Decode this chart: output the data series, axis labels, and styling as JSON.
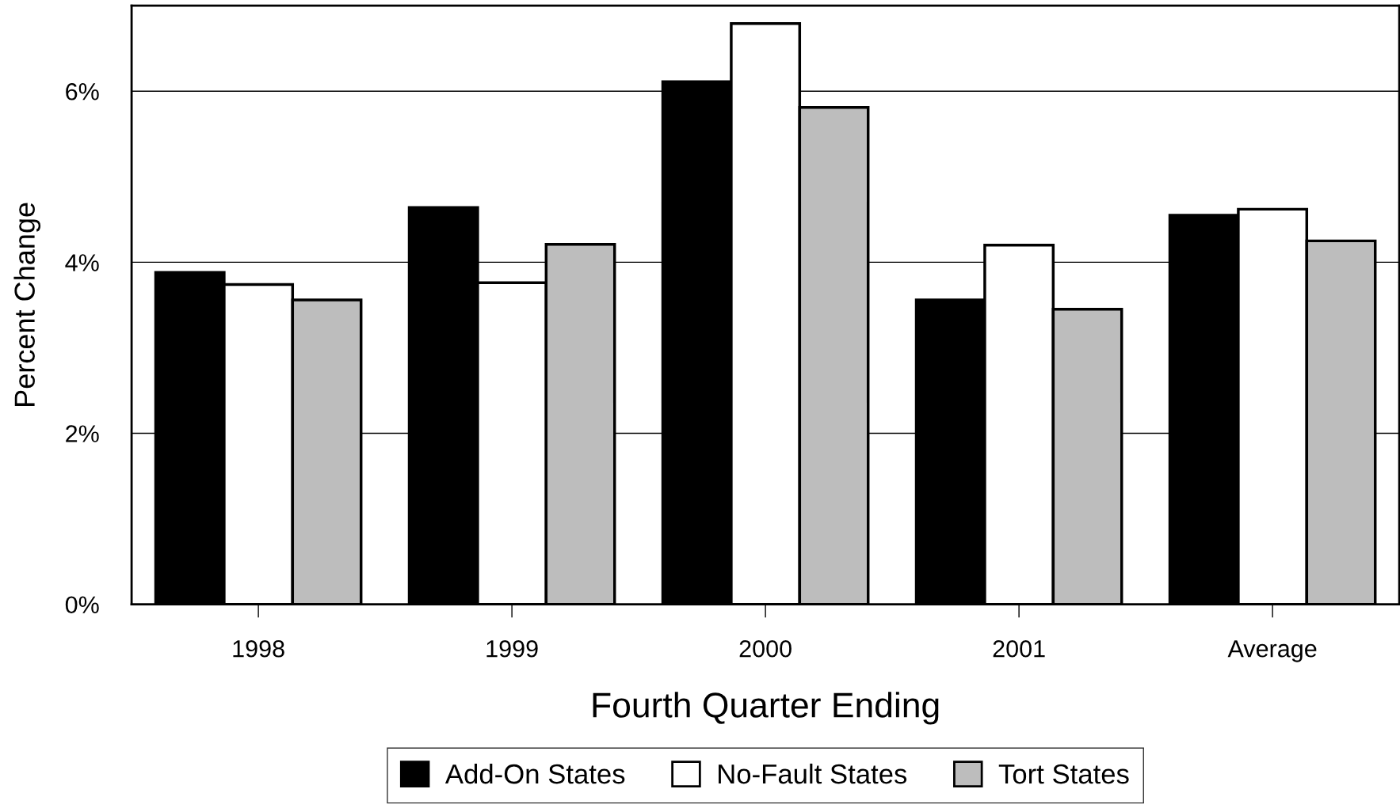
{
  "chart_data": {
    "type": "bar",
    "xlabel": "Fourth Quarter Ending",
    "ylabel": "Percent Change",
    "categories": [
      "1998",
      "1999",
      "2000",
      "2001",
      "Average"
    ],
    "series": [
      {
        "name": "Add-On States",
        "color": "#000000",
        "values": [
          3.88,
          4.64,
          6.11,
          3.56,
          4.55
        ]
      },
      {
        "name": "No-Fault States",
        "color": "#ffffff",
        "values": [
          3.74,
          3.76,
          6.79,
          4.2,
          4.62
        ]
      },
      {
        "name": "Tort States",
        "color": "#bdbdbd",
        "values": [
          3.56,
          4.21,
          5.81,
          3.45,
          4.25
        ]
      }
    ],
    "ylim": [
      0,
      7
    ],
    "yticks": [
      {
        "value": 0,
        "label": "0%"
      },
      {
        "value": 2,
        "label": "2%"
      },
      {
        "value": 4,
        "label": "4%"
      },
      {
        "value": 6,
        "label": "6%"
      }
    ],
    "grid": "y",
    "legend": "bottom"
  }
}
